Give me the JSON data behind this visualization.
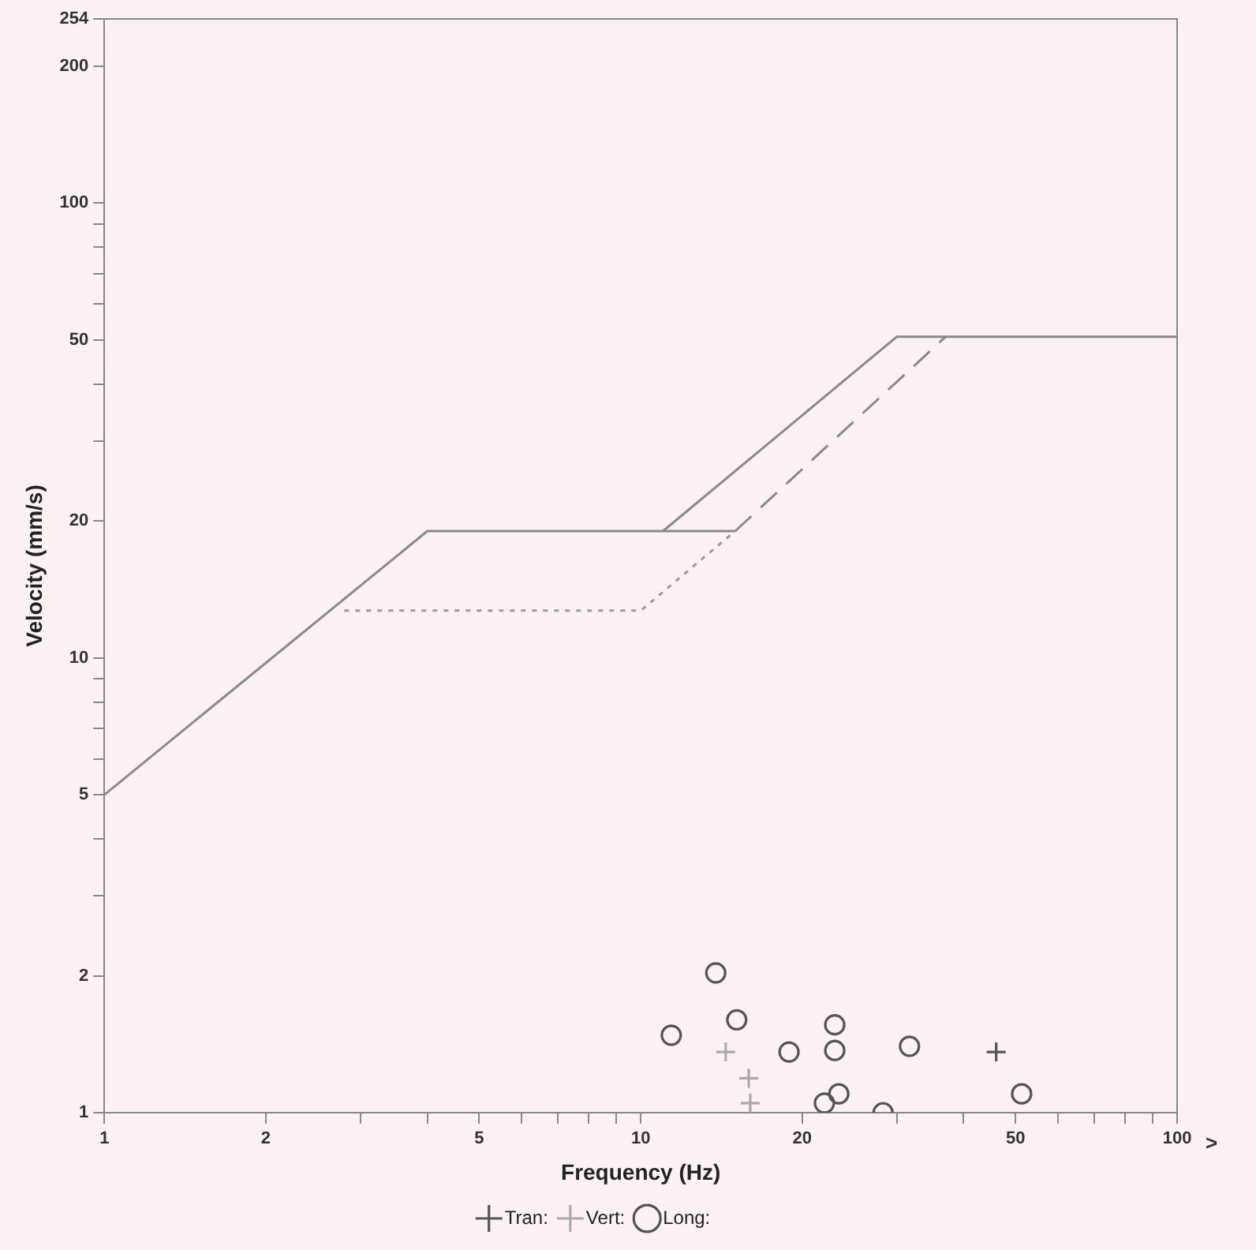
{
  "chart_data": {
    "type": "line",
    "xlabel": "Frequency (Hz)",
    "ylabel": "Velocity (mm/s)",
    "log": "xy",
    "grid": false,
    "legend": "bottom",
    "tick_labels": "xy",
    "annotations": [
      ">"
    ],
    "xlim": [
      1,
      100
    ],
    "ylim": [
      1,
      254
    ],
    "xticks": [
      1,
      2,
      {
        "value": 3,
        "label": null
      },
      {
        "value": 4,
        "label": null
      },
      5,
      {
        "value": 6,
        "label": null
      },
      {
        "value": 7,
        "label": null
      },
      {
        "value": 8,
        "label": null
      },
      {
        "value": 9,
        "label": null
      },
      10,
      20,
      {
        "value": 30,
        "label": null
      },
      {
        "value": 40,
        "label": null
      },
      50,
      {
        "value": 60,
        "label": null
      },
      {
        "value": 70,
        "label": null
      },
      {
        "value": 80,
        "label": null
      },
      {
        "value": 90,
        "label": null
      },
      100
    ],
    "yticks": [
      1,
      2,
      {
        "value": 3,
        "label": null
      },
      {
        "value": 4,
        "label": null
      },
      5,
      {
        "value": 6,
        "label": null
      },
      {
        "value": 7,
        "label": null
      },
      {
        "value": 8,
        "label": null
      },
      {
        "value": 9,
        "label": null
      },
      10,
      20,
      {
        "value": 30,
        "label": null
      },
      {
        "value": 40,
        "label": null
      },
      50,
      {
        "value": 60,
        "label": null
      },
      {
        "value": 70,
        "label": null
      },
      {
        "value": 80,
        "label": null
      },
      {
        "value": 90,
        "label": null
      },
      100,
      200,
      254
    ],
    "series": [
      {
        "color": "#8a8a8a",
        "line_style": "solid",
        "marker": "none",
        "x": [
          1,
          4,
          15
        ],
        "values": [
          5,
          19,
          19
        ]
      },
      {
        "color": "#8a8a8a",
        "line_style": "solid",
        "marker": "none",
        "x": [
          11,
          30,
          100
        ],
        "values": [
          19,
          50.8,
          50.8
        ]
      },
      {
        "color": "#8a8a8a",
        "line_style": "dashed",
        "marker": "none",
        "x": [
          15,
          37
        ],
        "values": [
          19,
          50.8
        ]
      },
      {
        "color": "#9a9a9a",
        "line_style": "dotted",
        "marker": "none",
        "x": [
          2.8,
          10,
          15
        ],
        "values": [
          12.7,
          12.7,
          19
        ]
      },
      {
        "type": "scatter",
        "name": "Tran:",
        "color": "#555555",
        "marker": "cross",
        "x": [
          46
        ],
        "values": [
          1.36
        ]
      },
      {
        "type": "scatter",
        "name": "Vert:",
        "color": "#aaaaaa",
        "marker": "cross",
        "x": [
          14.4,
          15.9,
          16
        ],
        "values": [
          1.36,
          1.19,
          1.05
        ]
      },
      {
        "type": "scatter",
        "name": "Long:",
        "color": "#555555",
        "marker": "circle",
        "x": [
          13.8,
          11.4,
          15.1,
          18.9,
          23,
          23,
          22,
          23.4,
          28.3,
          31.7,
          51.3
        ],
        "values": [
          2.03,
          1.48,
          1.6,
          1.36,
          1.56,
          1.37,
          1.05,
          1.1,
          1,
          1.4,
          1.1
        ]
      }
    ]
  }
}
